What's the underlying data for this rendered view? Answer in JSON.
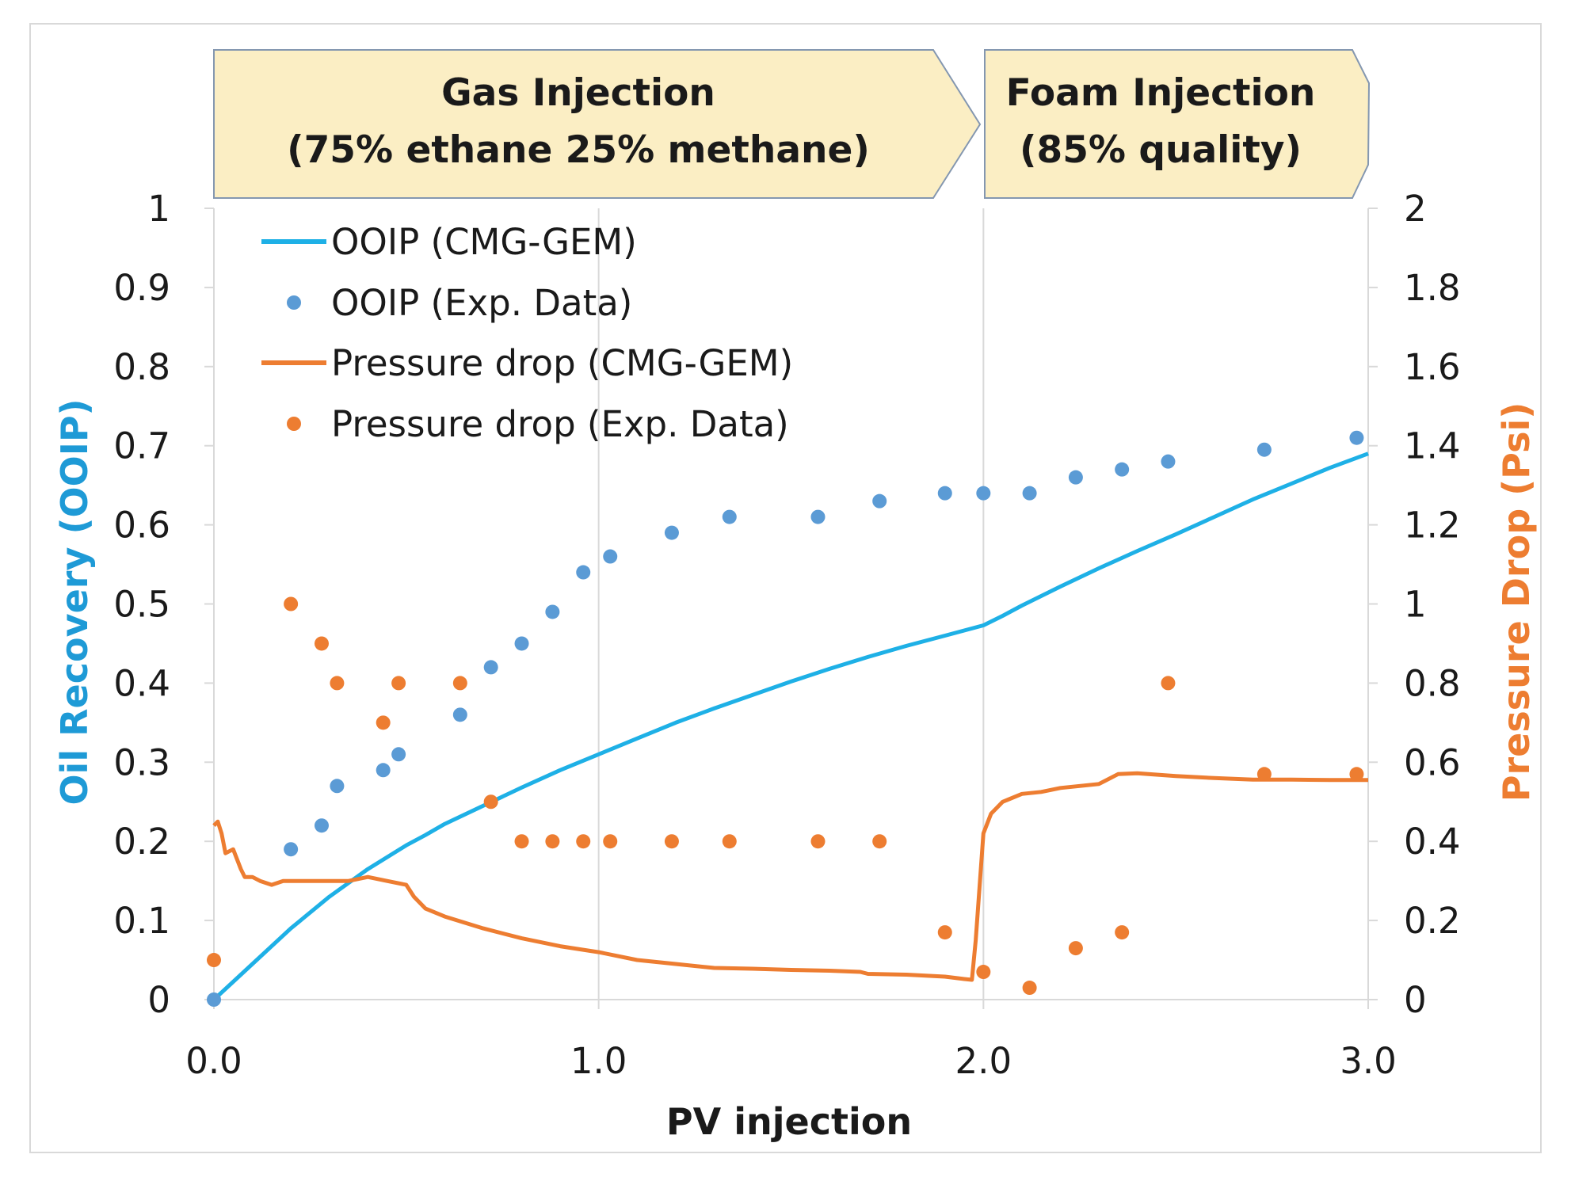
{
  "chart_data": {
    "type": "line",
    "phases": [
      {
        "title": "Gas Injection",
        "subtitle": "(75% ethane 25% methane)"
      },
      {
        "title": "Foam Injection",
        "subtitle": "(85% quality)"
      }
    ],
    "xlabel": "PV injection",
    "ylabel_left": "Oil Recovery (OOIP)",
    "ylabel_right": "Pressure Drop (Psi)",
    "xlim": [
      0,
      3
    ],
    "ylim_left": [
      0,
      1
    ],
    "ylim_right": [
      0,
      2
    ],
    "x_ticks": [
      "0.0",
      "1.0",
      "2.0",
      "3.0"
    ],
    "x_tick_values": [
      0,
      1,
      2,
      3
    ],
    "y_left_ticks": [
      "0",
      "0.1",
      "0.2",
      "0.3",
      "0.4",
      "0.5",
      "0.6",
      "0.7",
      "0.8",
      "0.9",
      "1"
    ],
    "y_left_tick_values": [
      0,
      0.1,
      0.2,
      0.3,
      0.4,
      0.5,
      0.6,
      0.7,
      0.8,
      0.9,
      1
    ],
    "y_right_ticks": [
      "0",
      "0.2",
      "0.4",
      "0.6",
      "0.8",
      "1",
      "1.2",
      "1.4",
      "1.6",
      "1.8",
      "2"
    ],
    "y_right_tick_values": [
      0,
      0.2,
      0.4,
      0.6,
      0.8,
      1,
      1.2,
      1.4,
      1.6,
      1.8,
      2
    ],
    "grid": "vertical",
    "legend_position": "top-left",
    "colors": {
      "blue_line": "#1eb0e6",
      "blue_dots": "#5b9bd5",
      "orange": "#ed7d31",
      "phase_fill": "#fbeec4",
      "phase_border": "#8497b0",
      "ylabel_left": "#1e9ad6",
      "ylabel_right": "#ed7d31"
    },
    "series": [
      {
        "name": "OOIP (CMG-GEM)",
        "kind": "line",
        "axis": "left",
        "x": [
          0,
          0.1,
          0.2,
          0.3,
          0.4,
          0.5,
          0.55,
          0.6,
          0.7,
          0.8,
          0.9,
          1.0,
          1.1,
          1.2,
          1.3,
          1.4,
          1.5,
          1.6,
          1.7,
          1.8,
          1.9,
          2.0,
          2.05,
          2.1,
          2.2,
          2.3,
          2.4,
          2.5,
          2.6,
          2.7,
          2.8,
          2.9,
          3.0
        ],
        "y": [
          0,
          0.045,
          0.09,
          0.13,
          0.165,
          0.195,
          0.208,
          0.222,
          0.245,
          0.268,
          0.29,
          0.31,
          0.33,
          0.35,
          0.368,
          0.385,
          0.402,
          0.418,
          0.433,
          0.447,
          0.46,
          0.473,
          0.485,
          0.498,
          0.522,
          0.545,
          0.567,
          0.588,
          0.61,
          0.632,
          0.652,
          0.672,
          0.69
        ]
      },
      {
        "name": "OOIP (Exp. Data)",
        "kind": "scatter",
        "axis": "left",
        "x": [
          0.0,
          0.2,
          0.28,
          0.32,
          0.44,
          0.48,
          0.64,
          0.72,
          0.8,
          0.88,
          0.96,
          1.03,
          1.19,
          1.34,
          1.57,
          1.73,
          1.9,
          2.0,
          2.12,
          2.24,
          2.36,
          2.48,
          2.73,
          2.97
        ],
        "y": [
          0.0,
          0.19,
          0.22,
          0.27,
          0.29,
          0.31,
          0.36,
          0.42,
          0.45,
          0.49,
          0.54,
          0.56,
          0.59,
          0.61,
          0.61,
          0.63,
          0.64,
          0.64,
          0.64,
          0.66,
          0.67,
          0.68,
          0.695,
          0.71
        ]
      },
      {
        "name": "Pressure drop (CMG-GEM)",
        "kind": "line",
        "axis": "right",
        "x": [
          0,
          0.01,
          0.02,
          0.03,
          0.05,
          0.07,
          0.08,
          0.1,
          0.12,
          0.15,
          0.18,
          0.2,
          0.25,
          0.3,
          0.35,
          0.4,
          0.45,
          0.5,
          0.52,
          0.55,
          0.6,
          0.7,
          0.8,
          0.9,
          1.0,
          1.1,
          1.2,
          1.3,
          1.4,
          1.5,
          1.6,
          1.68,
          1.7,
          1.8,
          1.9,
          1.95,
          1.97,
          1.98,
          2.0,
          2.02,
          2.05,
          2.1,
          2.15,
          2.2,
          2.3,
          2.35,
          2.4,
          2.5,
          2.6,
          2.7,
          2.8,
          2.9,
          3.0
        ],
        "y": [
          0.44,
          0.45,
          0.42,
          0.37,
          0.38,
          0.33,
          0.31,
          0.31,
          0.3,
          0.29,
          0.3,
          0.3,
          0.3,
          0.3,
          0.3,
          0.31,
          0.3,
          0.29,
          0.26,
          0.23,
          0.21,
          0.18,
          0.155,
          0.135,
          0.12,
          0.1,
          0.09,
          0.08,
          0.078,
          0.075,
          0.073,
          0.07,
          0.065,
          0.063,
          0.058,
          0.052,
          0.05,
          0.15,
          0.42,
          0.47,
          0.5,
          0.52,
          0.525,
          0.535,
          0.545,
          0.57,
          0.572,
          0.565,
          0.56,
          0.556,
          0.556,
          0.555,
          0.555
        ]
      },
      {
        "name": "Pressure drop (Exp. Data)",
        "kind": "scatter",
        "axis": "right",
        "x": [
          0.0,
          0.2,
          0.28,
          0.32,
          0.44,
          0.48,
          0.64,
          0.72,
          0.8,
          0.88,
          0.96,
          1.03,
          1.19,
          1.34,
          1.57,
          1.73,
          1.9,
          2.0,
          2.12,
          2.24,
          2.36,
          2.48,
          2.73,
          2.97
        ],
        "y": [
          0.1,
          1.0,
          0.9,
          0.8,
          0.7,
          0.8,
          0.8,
          0.5,
          0.4,
          0.4,
          0.4,
          0.4,
          0.4,
          0.4,
          0.4,
          0.4,
          0.17,
          0.07,
          0.03,
          0.13,
          0.17,
          0.8,
          0.57,
          0.57
        ]
      }
    ]
  }
}
